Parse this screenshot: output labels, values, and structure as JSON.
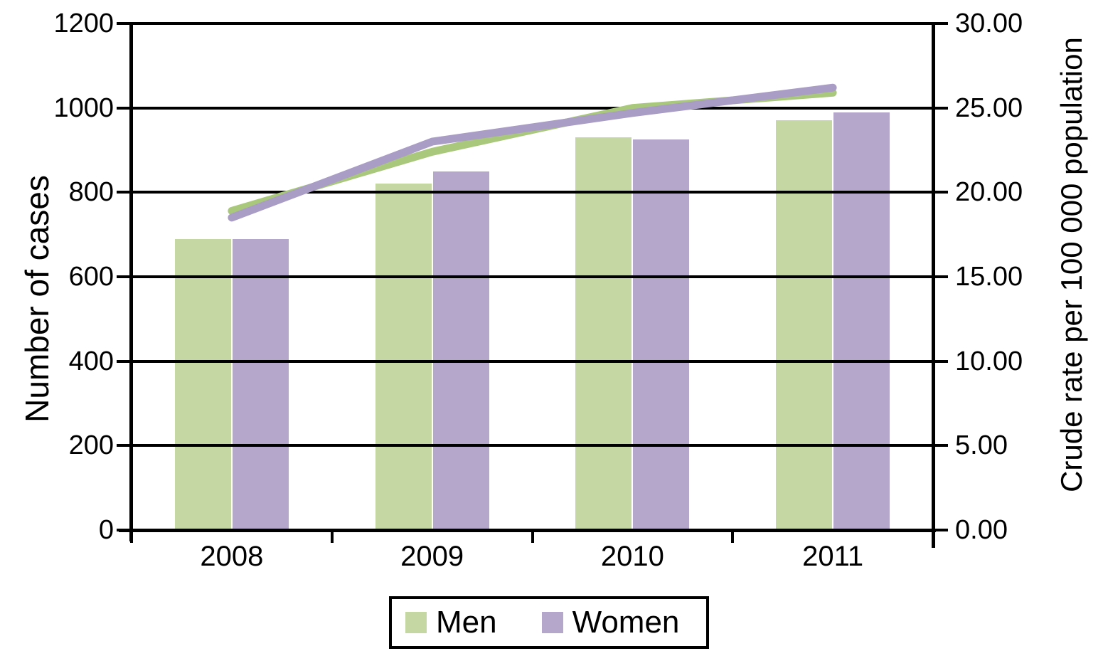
{
  "chart_data": {
    "type": "bar",
    "subtype": "combo-bar-line-dual-axis",
    "categories": [
      "2008",
      "2009",
      "2010",
      "2011"
    ],
    "series": [
      {
        "name": "Men",
        "type": "bar",
        "axis": "left",
        "values": [
          690,
          820,
          930,
          970
        ],
        "color": "#c5d8a4"
      },
      {
        "name": "Women",
        "type": "bar",
        "axis": "left",
        "values": [
          690,
          850,
          925,
          990
        ],
        "color": "#b4a7cb"
      },
      {
        "name": "Men crude rate",
        "type": "line",
        "axis": "right",
        "values": [
          18.9,
          22.4,
          25.0,
          25.9
        ],
        "color": "#a9c87c"
      },
      {
        "name": "Women crude rate",
        "type": "line",
        "axis": "right",
        "values": [
          18.5,
          23.0,
          24.7,
          26.2
        ],
        "color": "#a99cc5"
      }
    ],
    "left_axis": {
      "label": "Number of cases",
      "min": 0,
      "max": 1200,
      "step": 200,
      "tick_labels": [
        "1200",
        "1000",
        "800",
        "600",
        "400",
        "200",
        "0"
      ]
    },
    "right_axis": {
      "label": "Crude rate per 100 000 population",
      "min": 0,
      "max": 30,
      "step": 5,
      "tick_labels": [
        "30.00",
        "25.00",
        "20.00",
        "15.00",
        "10.00",
        "5.00",
        "0.00"
      ]
    },
    "legend": {
      "position": "bottom",
      "items": [
        {
          "label": "Men",
          "color": "#c5d8a4"
        },
        {
          "label": "Women",
          "color": "#b4a7cb"
        }
      ]
    },
    "grid": "horizontal",
    "colors": {
      "axis": "#000000",
      "text": "#000000",
      "background": "#ffffff"
    }
  }
}
